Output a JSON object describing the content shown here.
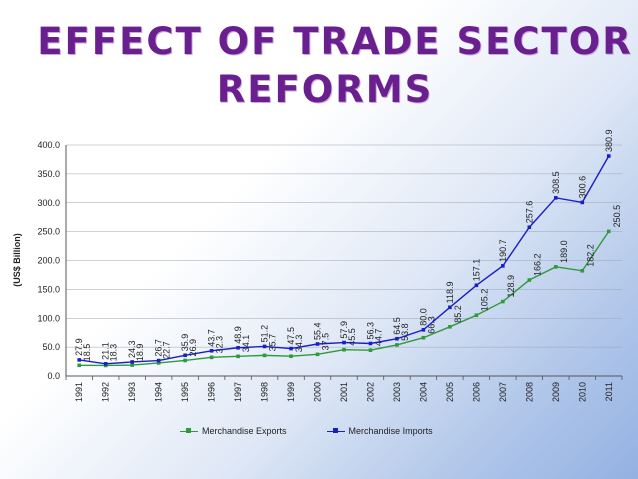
{
  "title_line1": "EFFECT OF TRADE SECTOR",
  "title_line2": "REFORMS",
  "chart_data": {
    "type": "line",
    "title": "",
    "ylabel": "(US$ Billion)",
    "xlabel": "",
    "ylim": [
      0,
      400
    ],
    "yticks": [
      "0.0",
      "50.0",
      "100.0",
      "150.0",
      "200.0",
      "250.0",
      "300.0",
      "350.0",
      "400.0"
    ],
    "categories": [
      "1991",
      "1992",
      "1993",
      "1994",
      "1995",
      "1996",
      "1997",
      "1998",
      "1999",
      "2000",
      "2001",
      "2002",
      "2003",
      "2004",
      "2005",
      "2006",
      "2007",
      "2008",
      "2009",
      "2010",
      "2011"
    ],
    "series": [
      {
        "name": "Merchandise Exports",
        "color": "#2e9a3a",
        "values": [
          18.5,
          18.3,
          18.9,
          22.7,
          26.9,
          32.3,
          34.1,
          35.7,
          34.3,
          37.5,
          45.5,
          44.7,
          53.8,
          66.3,
          85.2,
          105.2,
          128.9,
          166.2,
          189.0,
          182.2,
          250.5
        ],
        "labels": [
          "18.5",
          "18.3",
          "18.9",
          "22.7",
          "26.9",
          "32.3",
          "34.1",
          "35.7",
          "34.3",
          "37.5",
          "45.5",
          "44.7",
          "53.8",
          "66.3",
          "85.2",
          "105.2",
          "128.9",
          "166.2",
          "189.0",
          "182.2",
          "250.5"
        ]
      },
      {
        "name": "Merchandise Imports",
        "color": "#1a1fc4",
        "values": [
          27.9,
          21.1,
          24.3,
          26.7,
          35.9,
          43.7,
          48.9,
          51.2,
          47.5,
          55.4,
          57.9,
          56.3,
          64.5,
          80.0,
          118.9,
          157.1,
          190.7,
          257.6,
          308.5,
          300.6,
          380.9
        ],
        "labels": [
          "27.9",
          "21.1",
          "24.3",
          "26.7",
          "35.9",
          "43.7",
          "48.9",
          "51.2",
          "47.5",
          "55.4",
          "57.9",
          "56.3",
          "64.5",
          "80.0",
          "118.9",
          "157.1",
          "190.7",
          "257.6",
          "308.5",
          "300.6",
          "380.9"
        ]
      }
    ],
    "legend_position": "bottom"
  }
}
